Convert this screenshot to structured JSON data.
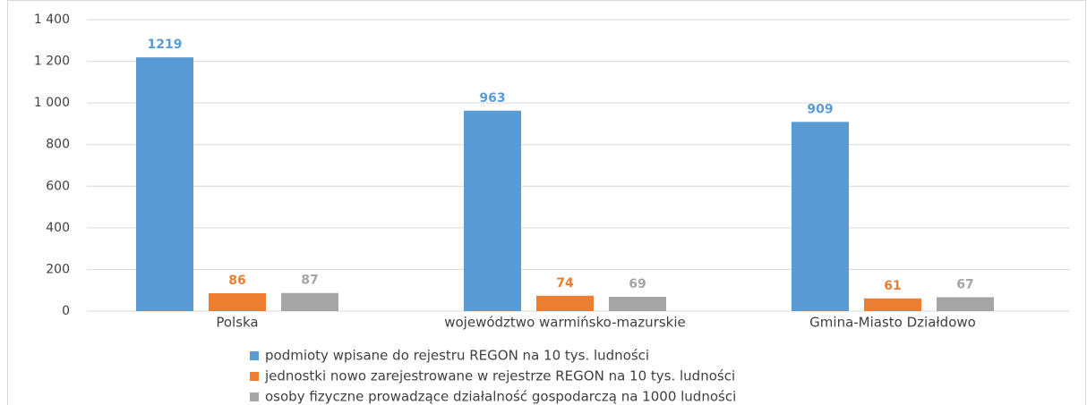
{
  "chart_data": {
    "type": "bar",
    "categories": [
      "Polska",
      "województwo warmińsko-mazurskie",
      "Gmina-Miasto Działdowo"
    ],
    "series": [
      {
        "name": "podmioty wpisane do rejestru REGON na 10 tys. ludności",
        "color": "#5b9bd5",
        "values": [
          1219,
          963,
          909
        ]
      },
      {
        "name": "jednostki nowo zarejestrowane w rejestrze REGON na 10 tys. ludności",
        "color": "#ed7d31",
        "values": [
          86,
          74,
          61
        ]
      },
      {
        "name": "osoby fizyczne prowadzące działalność gospodarczą na 1000 ludności",
        "color": "#a5a5a5",
        "values": [
          87,
          69,
          67
        ]
      }
    ],
    "ylim": [
      0,
      1400
    ],
    "yticks": [
      0,
      200,
      400,
      600,
      800,
      {
        "value": 1000,
        "label": "1 000"
      },
      {
        "value": 1200,
        "label": "1 200"
      },
      {
        "value": 1400,
        "label": "1 400"
      }
    ],
    "grid": true,
    "legend": "bottom"
  }
}
